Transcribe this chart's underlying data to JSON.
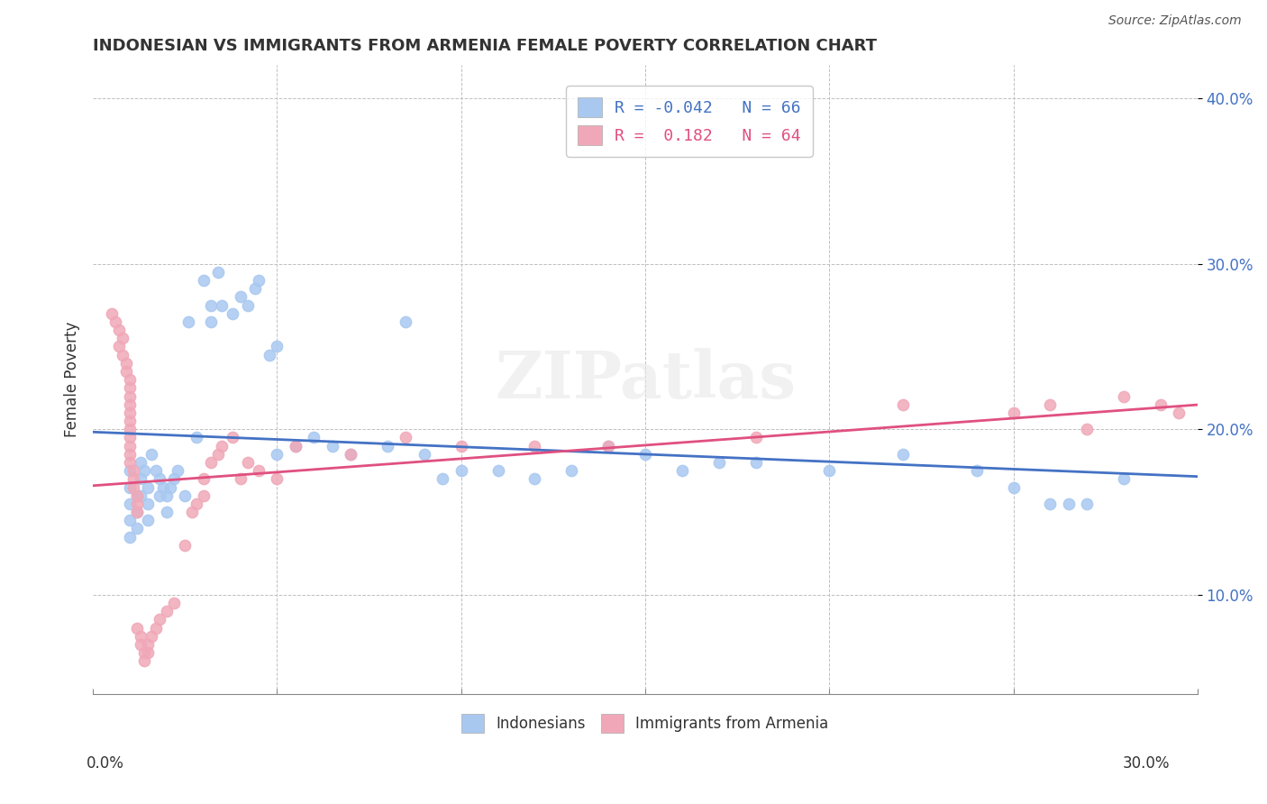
{
  "title": "INDONESIAN VS IMMIGRANTS FROM ARMENIA FEMALE POVERTY CORRELATION CHART",
  "source": "Source: ZipAtlas.com",
  "ylabel": "Female Poverty",
  "xlim": [
    0.0,
    0.3
  ],
  "ylim": [
    0.04,
    0.42
  ],
  "yticks": [
    0.1,
    0.2,
    0.3,
    0.4
  ],
  "ytick_labels": [
    "10.0%",
    "20.0%",
    "30.0%",
    "40.0%"
  ],
  "legend1_text": "R = -0.042   N = 66",
  "legend2_text": "R =  0.182   N = 64",
  "indonesian_color": "#a8c8f0",
  "armenian_color": "#f0a8b8",
  "indonesian_line_color": "#4472c4",
  "armenian_line_color": "#e05080",
  "background_color": "#ffffff",
  "indonesian_points": [
    [
      0.01,
      0.165
    ],
    [
      0.01,
      0.155
    ],
    [
      0.01,
      0.145
    ],
    [
      0.01,
      0.135
    ],
    [
      0.01,
      0.175
    ],
    [
      0.012,
      0.16
    ],
    [
      0.012,
      0.15
    ],
    [
      0.012,
      0.14
    ],
    [
      0.013,
      0.18
    ],
    [
      0.013,
      0.17
    ],
    [
      0.013,
      0.16
    ],
    [
      0.014,
      0.175
    ],
    [
      0.015,
      0.165
    ],
    [
      0.015,
      0.155
    ],
    [
      0.015,
      0.145
    ],
    [
      0.016,
      0.185
    ],
    [
      0.017,
      0.175
    ],
    [
      0.018,
      0.17
    ],
    [
      0.018,
      0.16
    ],
    [
      0.019,
      0.165
    ],
    [
      0.02,
      0.16
    ],
    [
      0.02,
      0.15
    ],
    [
      0.021,
      0.165
    ],
    [
      0.022,
      0.17
    ],
    [
      0.023,
      0.175
    ],
    [
      0.025,
      0.16
    ],
    [
      0.026,
      0.265
    ],
    [
      0.028,
      0.195
    ],
    [
      0.03,
      0.29
    ],
    [
      0.032,
      0.275
    ],
    [
      0.032,
      0.265
    ],
    [
      0.034,
      0.295
    ],
    [
      0.035,
      0.275
    ],
    [
      0.038,
      0.27
    ],
    [
      0.04,
      0.28
    ],
    [
      0.042,
      0.275
    ],
    [
      0.044,
      0.285
    ],
    [
      0.045,
      0.29
    ],
    [
      0.048,
      0.245
    ],
    [
      0.05,
      0.25
    ],
    [
      0.05,
      0.185
    ],
    [
      0.055,
      0.19
    ],
    [
      0.06,
      0.195
    ],
    [
      0.065,
      0.19
    ],
    [
      0.07,
      0.185
    ],
    [
      0.08,
      0.19
    ],
    [
      0.085,
      0.265
    ],
    [
      0.09,
      0.185
    ],
    [
      0.095,
      0.17
    ],
    [
      0.1,
      0.175
    ],
    [
      0.11,
      0.175
    ],
    [
      0.12,
      0.17
    ],
    [
      0.13,
      0.175
    ],
    [
      0.14,
      0.19
    ],
    [
      0.15,
      0.185
    ],
    [
      0.16,
      0.175
    ],
    [
      0.17,
      0.18
    ],
    [
      0.18,
      0.18
    ],
    [
      0.2,
      0.175
    ],
    [
      0.22,
      0.185
    ],
    [
      0.24,
      0.175
    ],
    [
      0.25,
      0.165
    ],
    [
      0.26,
      0.155
    ],
    [
      0.265,
      0.155
    ],
    [
      0.27,
      0.155
    ],
    [
      0.28,
      0.17
    ]
  ],
  "armenian_points": [
    [
      0.005,
      0.27
    ],
    [
      0.006,
      0.265
    ],
    [
      0.007,
      0.26
    ],
    [
      0.007,
      0.25
    ],
    [
      0.008,
      0.255
    ],
    [
      0.008,
      0.245
    ],
    [
      0.009,
      0.24
    ],
    [
      0.009,
      0.235
    ],
    [
      0.01,
      0.23
    ],
    [
      0.01,
      0.225
    ],
    [
      0.01,
      0.22
    ],
    [
      0.01,
      0.215
    ],
    [
      0.01,
      0.21
    ],
    [
      0.01,
      0.205
    ],
    [
      0.01,
      0.2
    ],
    [
      0.01,
      0.195
    ],
    [
      0.01,
      0.19
    ],
    [
      0.01,
      0.185
    ],
    [
      0.01,
      0.18
    ],
    [
      0.011,
      0.175
    ],
    [
      0.011,
      0.17
    ],
    [
      0.011,
      0.165
    ],
    [
      0.012,
      0.16
    ],
    [
      0.012,
      0.155
    ],
    [
      0.012,
      0.15
    ],
    [
      0.012,
      0.08
    ],
    [
      0.013,
      0.075
    ],
    [
      0.013,
      0.07
    ],
    [
      0.014,
      0.065
    ],
    [
      0.014,
      0.06
    ],
    [
      0.015,
      0.065
    ],
    [
      0.015,
      0.07
    ],
    [
      0.016,
      0.075
    ],
    [
      0.017,
      0.08
    ],
    [
      0.018,
      0.085
    ],
    [
      0.02,
      0.09
    ],
    [
      0.022,
      0.095
    ],
    [
      0.025,
      0.13
    ],
    [
      0.027,
      0.15
    ],
    [
      0.028,
      0.155
    ],
    [
      0.03,
      0.16
    ],
    [
      0.03,
      0.17
    ],
    [
      0.032,
      0.18
    ],
    [
      0.034,
      0.185
    ],
    [
      0.035,
      0.19
    ],
    [
      0.038,
      0.195
    ],
    [
      0.04,
      0.17
    ],
    [
      0.042,
      0.18
    ],
    [
      0.045,
      0.175
    ],
    [
      0.05,
      0.17
    ],
    [
      0.055,
      0.19
    ],
    [
      0.07,
      0.185
    ],
    [
      0.085,
      0.195
    ],
    [
      0.1,
      0.19
    ],
    [
      0.12,
      0.19
    ],
    [
      0.14,
      0.19
    ],
    [
      0.18,
      0.195
    ],
    [
      0.22,
      0.215
    ],
    [
      0.25,
      0.21
    ],
    [
      0.26,
      0.215
    ],
    [
      0.27,
      0.2
    ],
    [
      0.28,
      0.22
    ],
    [
      0.29,
      0.215
    ],
    [
      0.295,
      0.21
    ]
  ]
}
